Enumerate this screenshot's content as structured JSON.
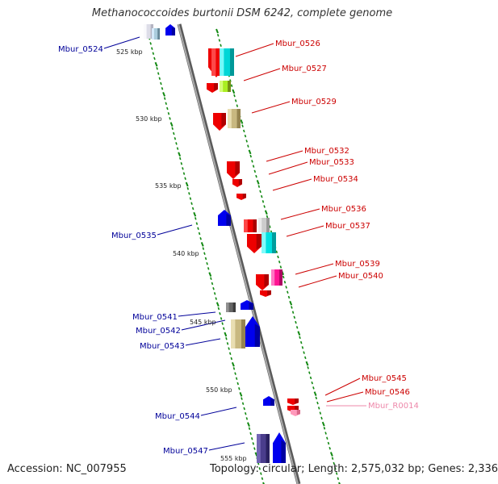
{
  "title": "Methanococcoides burtonii DSM 6242, complete genome",
  "footer": {
    "accession": "Accession: NC_007955",
    "summary": "Topology: circular; Length: 2,575,032 bp; Genes: 2,336"
  },
  "colors": {
    "forward_label": "#cc0000",
    "reverse_label": "#000099",
    "rna_label": "#ee88aa",
    "backbone": "#888888",
    "dots": "#118811"
  },
  "scale_labels": [
    "525 kbp",
    "530 kbp",
    "535 kbp",
    "540 kbp",
    "545 kbp",
    "550 kbp",
    "555 kbp"
  ],
  "forward_labels": [
    "Mbur_0526",
    "Mbur_0527",
    "Mbur_0529",
    "Mbur_0532",
    "Mbur_0533",
    "Mbur_0534",
    "Mbur_0536",
    "Mbur_0537",
    "Mbur_0539",
    "Mbur_0540",
    "Mbur_0545",
    "Mbur_0546"
  ],
  "rna_labels": [
    "Mbur_R0014"
  ],
  "reverse_labels": [
    "Mbur_0524",
    "Mbur_0535",
    "Mbur_0541",
    "Mbur_0542",
    "Mbur_0543",
    "Mbur_0544",
    "Mbur_0547"
  ]
}
